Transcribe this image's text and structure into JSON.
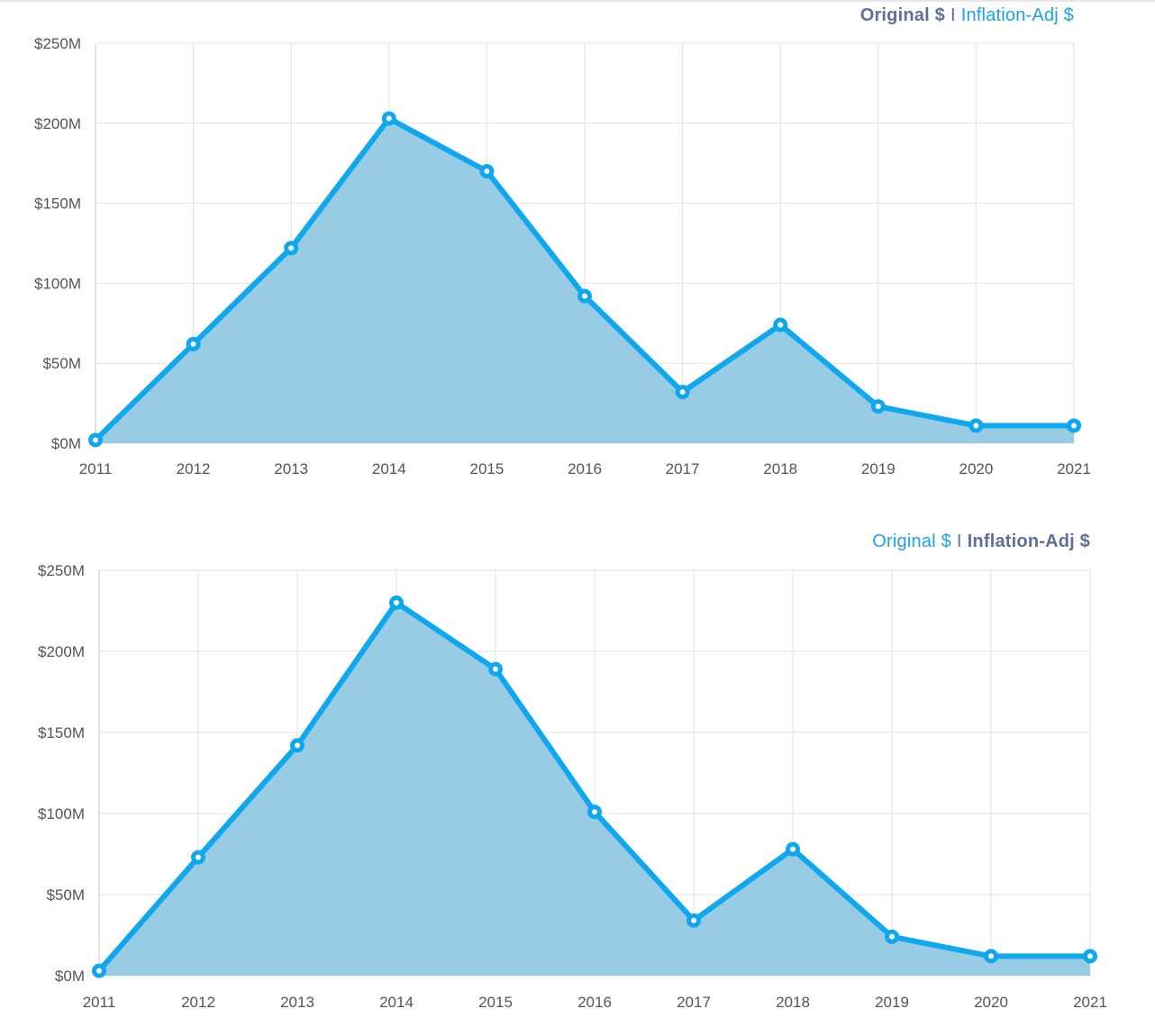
{
  "charts": [
    {
      "toggle": {
        "original_label": "Original $",
        "separator": "I",
        "inflation_label": "Inflation-Adj $",
        "active": "original"
      }
    },
    {
      "toggle": {
        "original_label": "Original $",
        "separator": "I",
        "inflation_label": "Inflation-Adj $",
        "active": "inflation"
      }
    }
  ],
  "colors": {
    "line": "#0fa7ee",
    "area": "#97cce4",
    "toggle_active": "#5f6f99",
    "toggle_inactive": "#1aa3e8"
  },
  "chart_data": [
    {
      "type": "area",
      "x": [
        "2011",
        "2012",
        "2013",
        "2014",
        "2015",
        "2016",
        "2017",
        "2018",
        "2019",
        "2020",
        "2021"
      ],
      "values": [
        2,
        62,
        122,
        203,
        170,
        92,
        32,
        74,
        23,
        11,
        11
      ],
      "yticks": [
        "$0M",
        "$50M",
        "$100M",
        "$150M",
        "$200M",
        "$250M"
      ],
      "ylim": [
        0,
        250
      ],
      "grid": true,
      "title": "",
      "xlabel": "",
      "ylabel": ""
    },
    {
      "type": "area",
      "x": [
        "2011",
        "2012",
        "2013",
        "2014",
        "2015",
        "2016",
        "2017",
        "2018",
        "2019",
        "2020",
        "2021"
      ],
      "values": [
        3,
        73,
        142,
        230,
        189,
        101,
        34,
        78,
        24,
        12,
        12
      ],
      "yticks": [
        "$0M",
        "$50M",
        "$100M",
        "$150M",
        "$200M",
        "$250M"
      ],
      "ylim": [
        0,
        250
      ],
      "grid": true,
      "title": "",
      "xlabel": "",
      "ylabel": ""
    }
  ]
}
